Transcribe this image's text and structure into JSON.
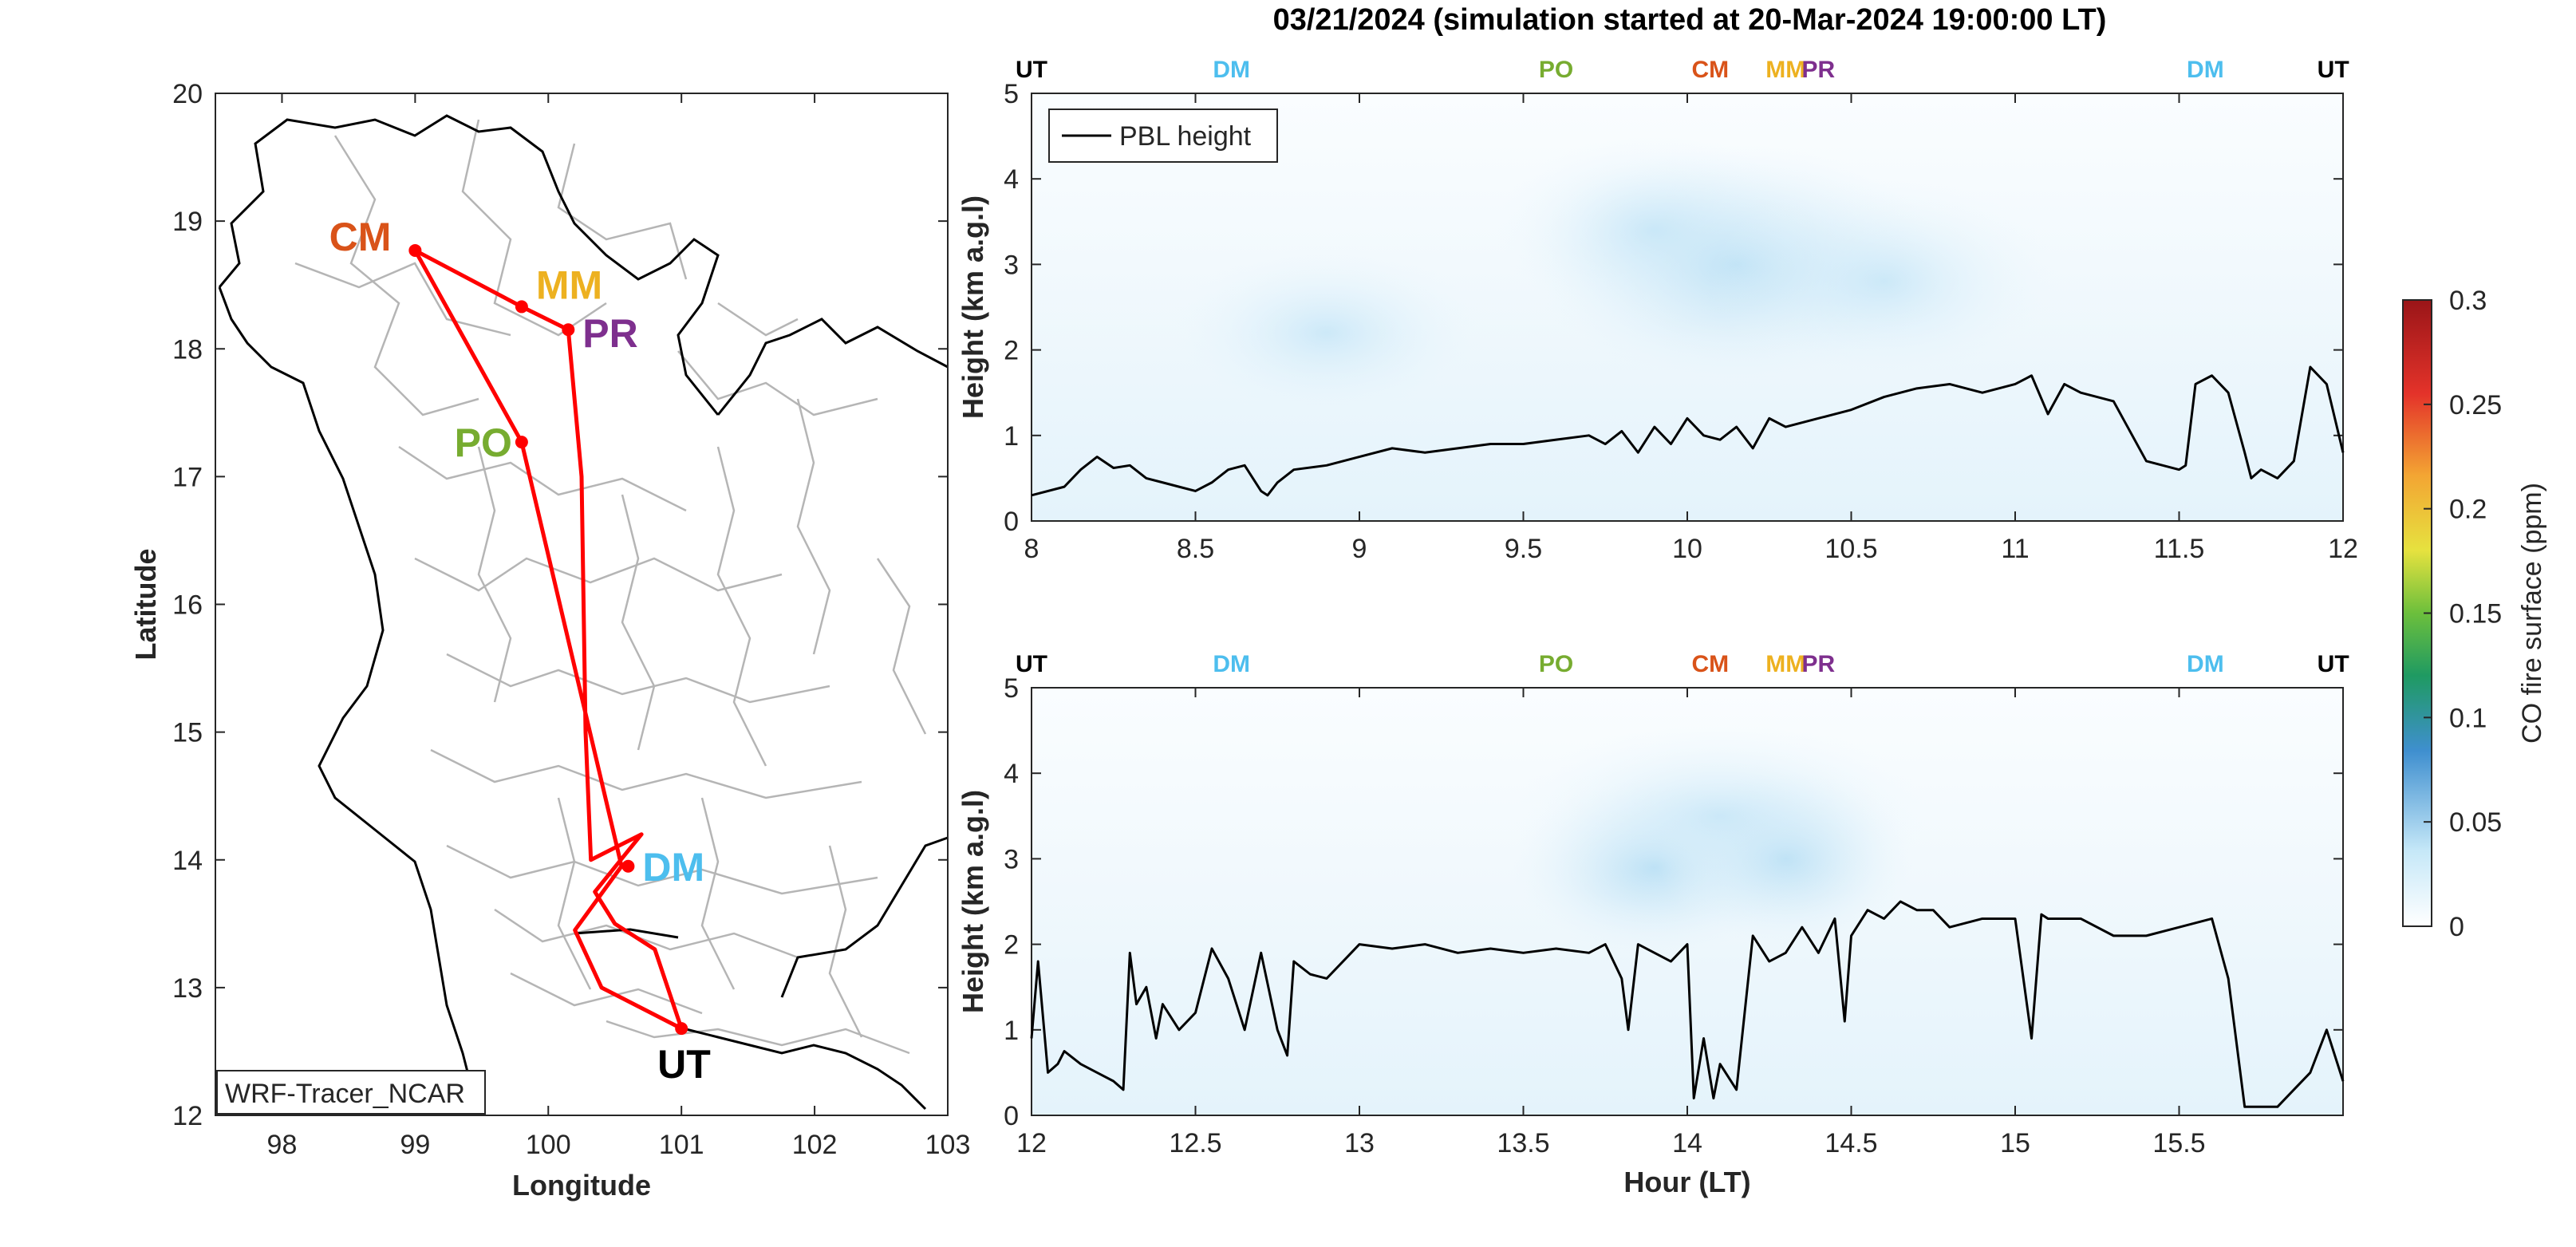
{
  "title": "03/21/2024 (simulation started at 20-Mar-2024 19:00:00 LT)",
  "colors": {
    "CM": "#d95319",
    "MM": "#edb120",
    "PR": "#7e2f8e",
    "PO": "#77ac30",
    "DM": "#4dbeee",
    "UT": "#000000",
    "route": "#ff0000"
  },
  "chart_data": [
    {
      "type": "line",
      "panel": "map",
      "xlabel": "Longitude",
      "ylabel": "Latitude",
      "xlim": [
        97.5,
        103
      ],
      "ylim": [
        12,
        20
      ],
      "xticks": [
        98,
        99,
        100,
        101,
        102,
        103
      ],
      "yticks": [
        12,
        13,
        14,
        15,
        16,
        17,
        18,
        19,
        20
      ],
      "legend_box": "WRF-Tracer_NCAR",
      "sites": [
        {
          "name": "CM",
          "lon": 99.0,
          "lat": 18.77
        },
        {
          "name": "MM",
          "lon": 99.8,
          "lat": 18.33
        },
        {
          "name": "PR",
          "lon": 100.15,
          "lat": 18.15
        },
        {
          "name": "PO",
          "lon": 99.8,
          "lat": 17.27
        },
        {
          "name": "DM",
          "lon": 100.6,
          "lat": 13.95
        },
        {
          "name": "UT",
          "lon": 101.0,
          "lat": 12.68
        }
      ],
      "route": [
        {
          "lon": 101.0,
          "lat": 12.68
        },
        {
          "lon": 100.4,
          "lat": 13.0
        },
        {
          "lon": 100.2,
          "lat": 13.45
        },
        {
          "lon": 100.55,
          "lat": 13.95
        },
        {
          "lon": 99.8,
          "lat": 17.27
        },
        {
          "lon": 99.0,
          "lat": 18.77
        },
        {
          "lon": 99.8,
          "lat": 18.33
        },
        {
          "lon": 100.15,
          "lat": 18.15
        },
        {
          "lon": 100.25,
          "lat": 17.0
        },
        {
          "lon": 100.28,
          "lat": 15.0
        },
        {
          "lon": 100.32,
          "lat": 14.0
        },
        {
          "lon": 100.7,
          "lat": 14.2
        },
        {
          "lon": 100.35,
          "lat": 13.75
        },
        {
          "lon": 100.5,
          "lat": 13.5
        },
        {
          "lon": 100.8,
          "lat": 13.3
        },
        {
          "lon": 101.0,
          "lat": 12.68
        }
      ]
    },
    {
      "type": "heatmap",
      "panel": "top",
      "xlabel": "",
      "ylabel": "Height (km a.g.l)",
      "xlim": [
        8,
        12
      ],
      "ylim": [
        0,
        5
      ],
      "xticks": [
        8,
        8.5,
        9,
        9.5,
        10,
        10.5,
        11,
        11.5,
        12
      ],
      "yticks": [
        0,
        1,
        2,
        3,
        4,
        5
      ],
      "legend": [
        "PBL height"
      ],
      "legend_position": "top-left",
      "site_markers": [
        {
          "label": "UT",
          "x": 8.0
        },
        {
          "label": "DM",
          "x": 8.61
        },
        {
          "label": "PO",
          "x": 9.6
        },
        {
          "label": "CM",
          "x": 10.07
        },
        {
          "label": "MM",
          "x": 10.3
        },
        {
          "label": "PR",
          "x": 10.4
        },
        {
          "label": "DM",
          "x": 11.58
        },
        {
          "label": "UT",
          "x": 11.97
        }
      ],
      "series": [
        {
          "name": "PBL height",
          "x": [
            8.0,
            8.1,
            8.15,
            8.2,
            8.25,
            8.3,
            8.35,
            8.4,
            8.45,
            8.5,
            8.55,
            8.6,
            8.65,
            8.7,
            8.72,
            8.75,
            8.8,
            8.9,
            9.0,
            9.1,
            9.2,
            9.3,
            9.4,
            9.5,
            9.6,
            9.7,
            9.75,
            9.8,
            9.85,
            9.9,
            9.95,
            10.0,
            10.05,
            10.1,
            10.15,
            10.2,
            10.25,
            10.3,
            10.4,
            10.5,
            10.6,
            10.7,
            10.8,
            10.9,
            11.0,
            11.05,
            11.1,
            11.15,
            11.2,
            11.3,
            11.4,
            11.5,
            11.52,
            11.55,
            11.6,
            11.65,
            11.7,
            11.72,
            11.75,
            11.8,
            11.85,
            11.9,
            11.95,
            12.0
          ],
          "values": [
            0.3,
            0.4,
            0.6,
            0.75,
            0.62,
            0.65,
            0.5,
            0.45,
            0.4,
            0.35,
            0.45,
            0.6,
            0.65,
            0.35,
            0.3,
            0.45,
            0.6,
            0.65,
            0.75,
            0.85,
            0.8,
            0.85,
            0.9,
            0.9,
            0.95,
            1.0,
            0.9,
            1.05,
            0.8,
            1.1,
            0.9,
            1.2,
            1.0,
            0.95,
            1.1,
            0.85,
            1.2,
            1.1,
            1.2,
            1.3,
            1.45,
            1.55,
            1.6,
            1.5,
            1.6,
            1.7,
            1.25,
            1.6,
            1.5,
            1.4,
            0.7,
            0.6,
            0.65,
            1.6,
            1.7,
            1.5,
            0.8,
            0.5,
            0.6,
            0.5,
            0.7,
            1.8,
            1.6,
            0.8
          ]
        }
      ]
    },
    {
      "type": "heatmap",
      "panel": "bottom",
      "xlabel": "Hour (LT)",
      "ylabel": "Height (km a.g.l)",
      "xlim": [
        12,
        16
      ],
      "ylim": [
        0,
        5
      ],
      "xticks": [
        12,
        12.5,
        13,
        13.5,
        14,
        14.5,
        15,
        15.5
      ],
      "yticks": [
        0,
        1,
        2,
        3,
        4,
        5
      ],
      "site_markers": [
        {
          "label": "UT",
          "x": 12.0
        },
        {
          "label": "DM",
          "x": 12.61
        },
        {
          "label": "PO",
          "x": 13.6
        },
        {
          "label": "CM",
          "x": 14.07
        },
        {
          "label": "MM",
          "x": 14.3
        },
        {
          "label": "PR",
          "x": 14.4
        },
        {
          "label": "DM",
          "x": 15.58
        },
        {
          "label": "UT",
          "x": 15.97
        }
      ],
      "series": [
        {
          "name": "PBL height",
          "x": [
            12.0,
            12.02,
            12.05,
            12.08,
            12.1,
            12.15,
            12.2,
            12.25,
            12.28,
            12.3,
            12.32,
            12.35,
            12.38,
            12.4,
            12.45,
            12.5,
            12.55,
            12.6,
            12.65,
            12.7,
            12.75,
            12.78,
            12.8,
            12.85,
            12.9,
            12.95,
            13.0,
            13.1,
            13.2,
            13.3,
            13.4,
            13.5,
            13.6,
            13.7,
            13.75,
            13.8,
            13.82,
            13.85,
            13.9,
            13.95,
            14.0,
            14.02,
            14.05,
            14.08,
            14.1,
            14.15,
            14.2,
            14.25,
            14.3,
            14.35,
            14.4,
            14.45,
            14.48,
            14.5,
            14.55,
            14.6,
            14.65,
            14.7,
            14.75,
            14.8,
            14.9,
            15.0,
            15.05,
            15.08,
            15.1,
            15.2,
            15.3,
            15.4,
            15.5,
            15.6,
            15.65,
            15.7,
            15.75,
            15.8,
            15.85,
            15.9,
            15.95,
            16.0
          ],
          "values": [
            0.9,
            1.8,
            0.5,
            0.6,
            0.75,
            0.6,
            0.5,
            0.4,
            0.3,
            1.9,
            1.3,
            1.5,
            0.9,
            1.3,
            1.0,
            1.2,
            1.95,
            1.6,
            1.0,
            1.9,
            1.0,
            0.7,
            1.8,
            1.65,
            1.6,
            1.8,
            2.0,
            1.95,
            2.0,
            1.9,
            1.95,
            1.9,
            1.95,
            1.9,
            2.0,
            1.6,
            1.0,
            2.0,
            1.9,
            1.8,
            2.0,
            0.2,
            0.9,
            0.2,
            0.6,
            0.3,
            2.1,
            1.8,
            1.9,
            2.2,
            1.9,
            2.3,
            1.1,
            2.1,
            2.4,
            2.3,
            2.5,
            2.4,
            2.4,
            2.2,
            2.3,
            2.3,
            0.9,
            2.35,
            2.3,
            2.3,
            2.1,
            2.1,
            2.2,
            2.3,
            1.6,
            0.1,
            0.1,
            0.1,
            0.3,
            0.5,
            1.0,
            0.4
          ]
        }
      ]
    },
    {
      "type": "heatmap",
      "panel": "colorbar",
      "ylabel": "CO fire surface (ppm)",
      "ylim": [
        0,
        0.3
      ],
      "yticks": [
        0,
        0.05,
        0.1,
        0.15,
        0.2,
        0.25,
        0.3
      ],
      "yticklabels": [
        "0",
        "0.05",
        "0.1",
        "0.15",
        "0.2",
        "0.25",
        "0.3"
      ]
    }
  ]
}
